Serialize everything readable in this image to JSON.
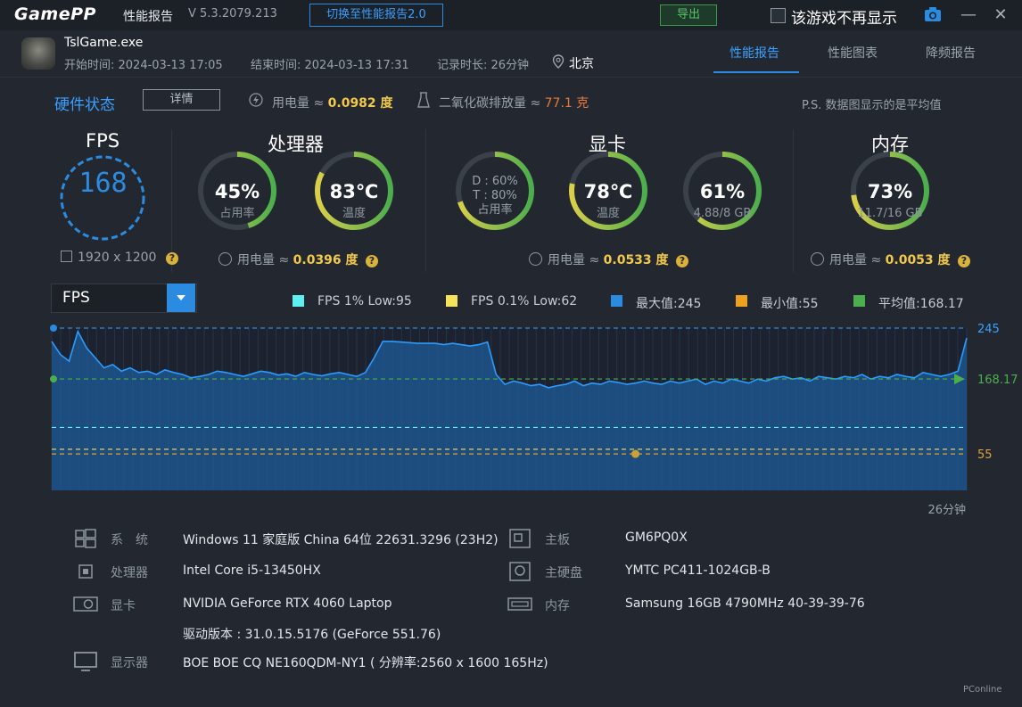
{
  "app": {
    "logo": "GamePP",
    "title": "性能报告",
    "version": "V 5.3.2079.213",
    "switch_button": "切换至性能报告2.0",
    "export_button": "导出",
    "no_show_label": "该游戏不再显示"
  },
  "game": {
    "exe": "TslGame.exe",
    "start": "开始时间: 2024-03-13 17:05",
    "end": "结束时间: 2024-03-13 17:31",
    "duration": "记录时长: 26分钟",
    "city": "北京"
  },
  "tabs": [
    "性能报告",
    "性能图表",
    "降频报告"
  ],
  "hw": {
    "title": "硬件状态",
    "detail_button": "详情",
    "power_label": "用电量 ≈ ",
    "power_value": "0.0982 度",
    "co2_label": "二氧化碳排放量 ≈ ",
    "co2_value": "77.1 克",
    "ps_note": "P.S. 数据图显示的是平均值"
  },
  "sections": {
    "fps": {
      "title": "FPS",
      "value": "168",
      "resolution": "1920 x 1200",
      "ring_color": "#2a8be0"
    },
    "cpu": {
      "title": "处理器",
      "usage_value": "45%",
      "usage_label": "占用率",
      "usage_fraction": 0.45,
      "temp_value": "83℃",
      "temp_label": "温度",
      "temp_fraction": 0.83,
      "power_label": "用电量 ≈ ",
      "power_value": "0.0396 度"
    },
    "gpu": {
      "title": "显卡",
      "d_line": "D : 60%",
      "t_line": "T : 80%",
      "usage_label": "占用率",
      "usage_fraction": 0.7,
      "temp_value": "78℃",
      "temp_label": "温度",
      "temp_fraction": 0.78,
      "vram_value": "61%",
      "vram_label": "4.88/8 GB",
      "vram_fraction": 0.61,
      "power_label": "用电量 ≈ ",
      "power_value": "0.0533 度"
    },
    "mem": {
      "title": "内存",
      "value": "73%",
      "label": "11.7/16 GB",
      "fraction": 0.73,
      "power_label": "用电量 ≈ ",
      "power_value": "0.0053 度"
    }
  },
  "chart_controls": {
    "dropdown_value": "FPS",
    "legend": [
      {
        "label": "FPS 1% Low:95",
        "color": "#5ef0f0"
      },
      {
        "label": "FPS 0.1% Low:62",
        "color": "#f5e45a"
      },
      {
        "label": "最大值:245",
        "color": "#2a8be0"
      },
      {
        "label": "最小值:55",
        "color": "#f0a020"
      },
      {
        "label": "平均值:168.17",
        "color": "#4cae4c"
      }
    ]
  },
  "chart_data": {
    "type": "area",
    "series": [
      {
        "values": [
          225,
          205,
          195,
          240,
          215,
          200,
          185,
          190,
          180,
          185,
          178,
          180,
          175,
          182,
          178,
          175,
          170,
          172,
          175,
          180,
          178,
          175,
          172,
          176,
          180,
          178,
          174,
          176,
          172,
          178,
          175,
          173,
          176,
          178,
          175,
          172,
          178,
          200,
          225,
          225,
          224,
          223,
          222,
          222,
          222,
          220,
          222,
          220,
          218,
          220,
          224,
          175,
          160,
          165,
          162,
          158,
          160,
          155,
          158,
          160,
          165,
          158,
          162,
          160,
          165,
          163,
          160,
          162,
          165,
          162,
          160,
          165,
          162,
          165,
          168,
          160,
          165,
          162,
          168,
          165,
          162,
          168,
          165,
          170,
          172,
          168,
          170,
          165,
          172,
          170,
          168,
          172,
          170,
          175,
          168,
          172,
          170,
          175,
          172,
          170,
          178,
          175,
          172,
          175,
          180,
          230
        ]
      }
    ],
    "y_max_label": "245",
    "y_avg_label": "168.17",
    "y_min_label": "55",
    "ylim": [
      0,
      245
    ],
    "x_end_label": "26分钟",
    "ref_lines": [
      {
        "value": 245,
        "color": "#2a8be0"
      },
      {
        "value": 168.17,
        "color": "#4cae4c"
      },
      {
        "value": 95,
        "color": "#5ef0f0"
      },
      {
        "value": 62,
        "color": "#f5e45a"
      },
      {
        "value": 55,
        "color": "#f0a020"
      }
    ]
  },
  "system": [
    {
      "label": "系　统",
      "value": "Windows 11 家庭版 China 64位 22631.3296 (23H2)"
    },
    {
      "label": "处理器",
      "value": "Intel Core i5-13450HX"
    },
    {
      "label": "显卡",
      "value": "NVIDIA GeForce RTX 4060 Laptop"
    },
    {
      "label": "",
      "value": "驱动版本 : 31.0.15.5176 (GeForce 551.76)"
    },
    {
      "label": "显示器",
      "value": "BOE BOE CQ NE160QDM-NY1 ( 分辨率:2560 x 1600 165Hz)"
    },
    {
      "label": "主板",
      "value": "GM6PQ0X"
    },
    {
      "label": "主硬盘",
      "value": "YMTC PC411-1024GB-B"
    },
    {
      "label": "内存",
      "value": "Samsung 16GB 4790MHz 40-39-39-76"
    }
  ],
  "watermark": "PConline"
}
